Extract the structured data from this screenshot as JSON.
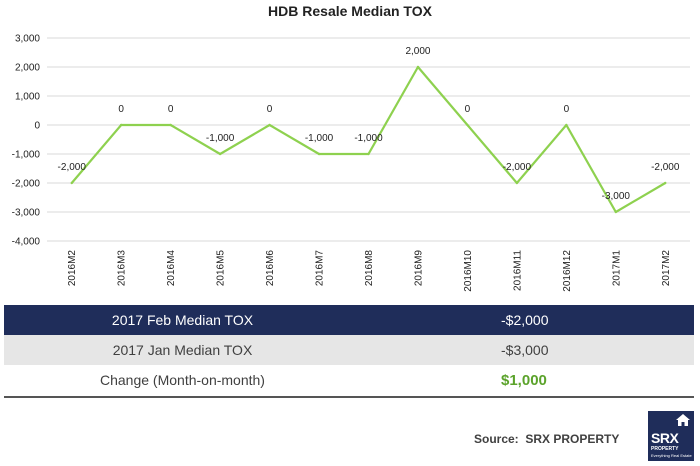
{
  "chart_data": {
    "type": "line",
    "title": "HDB Resale Median TOX",
    "categories": [
      "2016M2",
      "2016M3",
      "2016M4",
      "2016M5",
      "2016M6",
      "2016M7",
      "2016M8",
      "2016M9",
      "2016M10",
      "2016M11",
      "2016M12",
      "2017M1",
      "2017M2"
    ],
    "series": [
      {
        "values": [
          -2000,
          0,
          0,
          -1000,
          0,
          -1000,
          -1000,
          2000,
          0,
          -2000,
          0,
          -3000,
          -2000
        ],
        "labels": [
          "-2,000",
          "0",
          "0",
          "-1,000",
          "0",
          "-1,000",
          "-1,000",
          "2,000",
          "0",
          "-2,000",
          "0",
          "-3,000",
          "-2,000"
        ]
      }
    ],
    "ylim": [
      -4000,
      3000
    ],
    "yticks": [
      3000,
      2000,
      1000,
      0,
      -1000,
      -2000,
      -3000,
      -4000
    ],
    "ytick_labels": [
      "3,000",
      "2,000",
      "1,000",
      "0",
      "-1,000",
      "-2,000",
      "-3,000",
      "-4,000"
    ],
    "grid": true,
    "line_color": "#8ed14f"
  },
  "table": {
    "rows": [
      {
        "label": "2017 Feb Median TOX",
        "value": "-$2,000"
      },
      {
        "label": "2017 Jan Median TOX",
        "value": "-$3,000"
      },
      {
        "label": "Change (Month-on-month)",
        "value": "$1,000"
      }
    ]
  },
  "footer": {
    "source": "Source:  SRX PROPERTY",
    "logo_text": "SRX",
    "logo_sub": "PROPERTY",
    "logo_tagline": "Everything Real Estate"
  },
  "colors": {
    "header_row": "#1f2d5a",
    "alt_row": "#e6e6e6",
    "change_value": "#5ba32b"
  }
}
